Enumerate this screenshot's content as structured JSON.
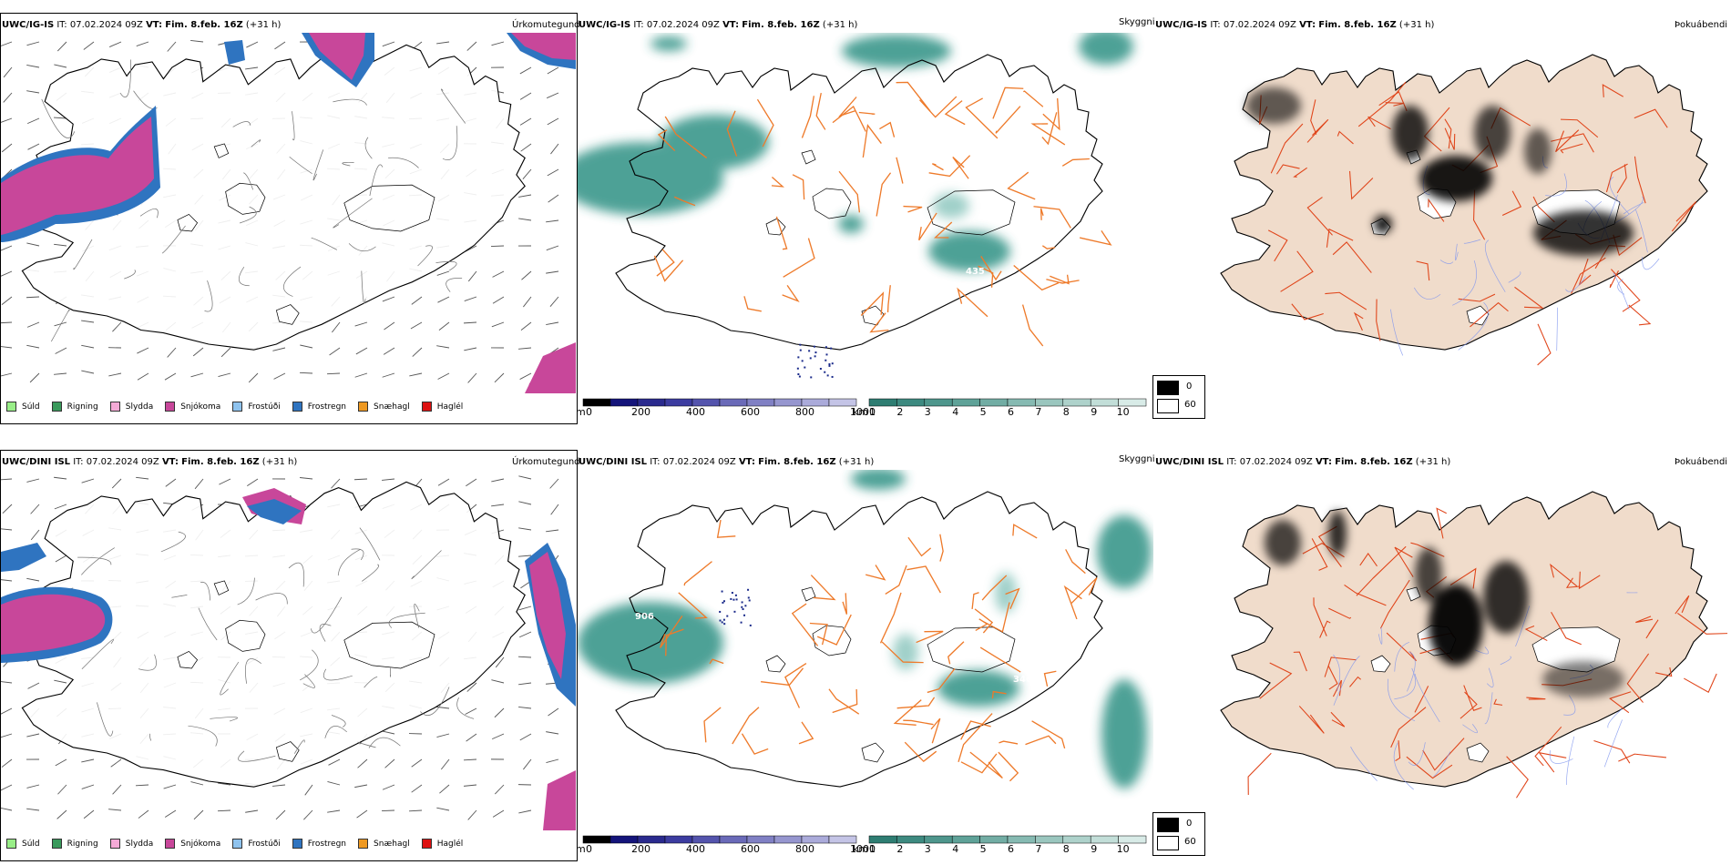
{
  "rows": [
    {
      "model_label": "UWC/IG-IS",
      "it_prefix": "IT:",
      "it_value": "07.02.2024 09Z",
      "vt_prefix": "VT:",
      "vt_value": "Fim. 8.feb. 16Z",
      "lead": "(+31 h)",
      "panels": [
        "Úrkomutegund",
        "Skyggni",
        "Þokuábendi"
      ],
      "vis_label_435": "435"
    },
    {
      "model_label": "UWC/DINI ISL",
      "it_prefix": "IT:",
      "it_value": "07.02.2024 09Z",
      "vt_prefix": "VT:",
      "vt_value": "Fim. 8.feb. 16Z",
      "lead": "(+31 h)",
      "panels": [
        "Úrkomutegund",
        "Skyggni",
        "Þokuábendi"
      ],
      "vis_label_906": "906",
      "vis_label_346": "346"
    }
  ],
  "precip_legend": [
    {
      "label": "Súld",
      "color": "#99ee88"
    },
    {
      "label": "Rigning",
      "color": "#3a9a5c"
    },
    {
      "label": "Slydda",
      "color": "#f4aad6"
    },
    {
      "label": "Snjókoma",
      "color": "#c8479a"
    },
    {
      "label": "Frostúði",
      "color": "#8fc3ee"
    },
    {
      "label": "Frostregn",
      "color": "#2f74c0"
    },
    {
      "label": "Snæhagl",
      "color": "#ee9922"
    },
    {
      "label": "Haglél",
      "color": "#dd1111"
    }
  ],
  "visibility_m_scale": {
    "unit": "m",
    "ticks": [
      "0",
      "200",
      "400",
      "600",
      "800",
      "1000"
    ]
  },
  "visibility_km_scale": {
    "unit": "km",
    "ticks": [
      "1",
      "2",
      "3",
      "4",
      "5",
      "6",
      "7",
      "8",
      "9",
      "10"
    ]
  },
  "fog_legend": {
    "min": "0",
    "max": "60"
  },
  "colors": {
    "snow": "#c8479a",
    "freezing_rain": "#2f74c0",
    "teal": "#2e9184",
    "roads": "#ee7a2a",
    "land": "#f0dccb",
    "rivers": "#7f95ee"
  }
}
